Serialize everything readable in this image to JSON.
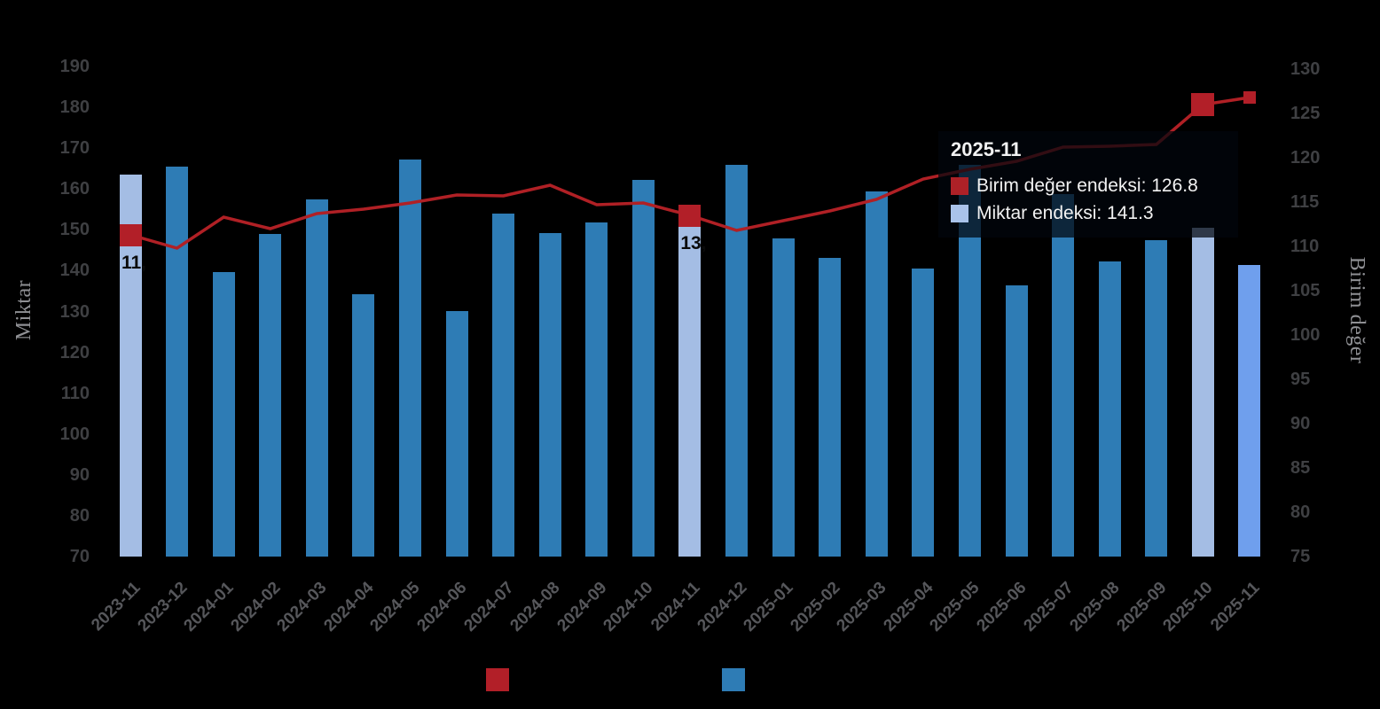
{
  "chart_data": {
    "type": "combo",
    "title": "",
    "categories": [
      "2023-11",
      "2023-12",
      "2024-01",
      "2024-02",
      "2024-03",
      "2024-04",
      "2024-05",
      "2024-06",
      "2024-07",
      "2024-08",
      "2024-09",
      "2024-10",
      "2024-11",
      "2024-12",
      "2025-01",
      "2025-02",
      "2025-03",
      "2025-04",
      "2025-05",
      "2025-06",
      "2025-07",
      "2025-08",
      "2025-09",
      "2025-10",
      "2025-11"
    ],
    "series": [
      {
        "name": "Miktar endeksi",
        "type": "bar",
        "axis": "left",
        "values": [
          163.5,
          165.5,
          139.7,
          149.0,
          157.5,
          134.2,
          167.2,
          130.2,
          154.0,
          149.3,
          151.8,
          162.2,
          152.0,
          166.0,
          148.0,
          143.2,
          159.5,
          140.5,
          166.0,
          136.5,
          158.8,
          142.2,
          147.4,
          150.5,
          141.3
        ]
      },
      {
        "name": "Birim değer endeksi",
        "type": "line",
        "axis": "right",
        "values": [
          111.3,
          109.8,
          113.3,
          112.0,
          113.7,
          114.2,
          114.9,
          115.8,
          115.7,
          116.9,
          114.7,
          114.9,
          113.5,
          111.8,
          112.9,
          114.0,
          115.3,
          117.6,
          118.7,
          119.6,
          121.2,
          121.3,
          121.5,
          126.0,
          126.8
        ]
      }
    ],
    "left_axis": {
      "title": "Miktar",
      "min": 70,
      "max": 190,
      "tick_step": 10,
      "ticks": [
        190,
        180,
        170,
        160,
        150,
        140,
        130,
        120,
        110,
        100,
        90,
        80,
        70
      ]
    },
    "right_axis": {
      "title": "Birim değer",
      "min": 75,
      "max": 130,
      "tick_step": 5,
      "ticks": [
        130,
        125,
        120,
        115,
        110,
        105,
        100,
        95,
        90,
        85,
        80,
        75
      ]
    },
    "bar_highlight_indices": [
      0,
      12,
      23
    ],
    "bar_current_index": 24,
    "line_markers": [
      {
        "index": 0,
        "size": 25
      },
      {
        "index": 12,
        "size": 25
      },
      {
        "index": 23,
        "size": 26
      },
      {
        "index": 24,
        "size": 14
      }
    ],
    "data_labels": [
      {
        "index": 0,
        "text": "11,"
      },
      {
        "index": 12,
        "text": "13,"
      }
    ],
    "grid": false,
    "legend_position": "bottom"
  },
  "tooltip": {
    "title": "2025-11",
    "rows": [
      {
        "swatch": "#ad2127",
        "text": "Birim değer endeksi: 126.8"
      },
      {
        "swatch": "#a9c3ea",
        "text": "Miktar endeksi: 141.3"
      }
    ]
  },
  "legend": {
    "swatches": [
      "#b21f28",
      "#2e7cb5"
    ]
  },
  "colors": {
    "background": "#000000",
    "bar_default": "#2e7cb5",
    "bar_highlight": "#a4bde4",
    "bar_current": "#6f9fed",
    "line": "#b02025",
    "marker": "#b21f28",
    "y_tick_text": "#3f4043",
    "x_tick_text": "#56575b",
    "axis_title_text": "#8f9094",
    "data_label_text": "#0a0a0a",
    "tooltip_bg": "rgba(2,6,12,0.72)",
    "tooltip_text": "#f2f2f2"
  }
}
